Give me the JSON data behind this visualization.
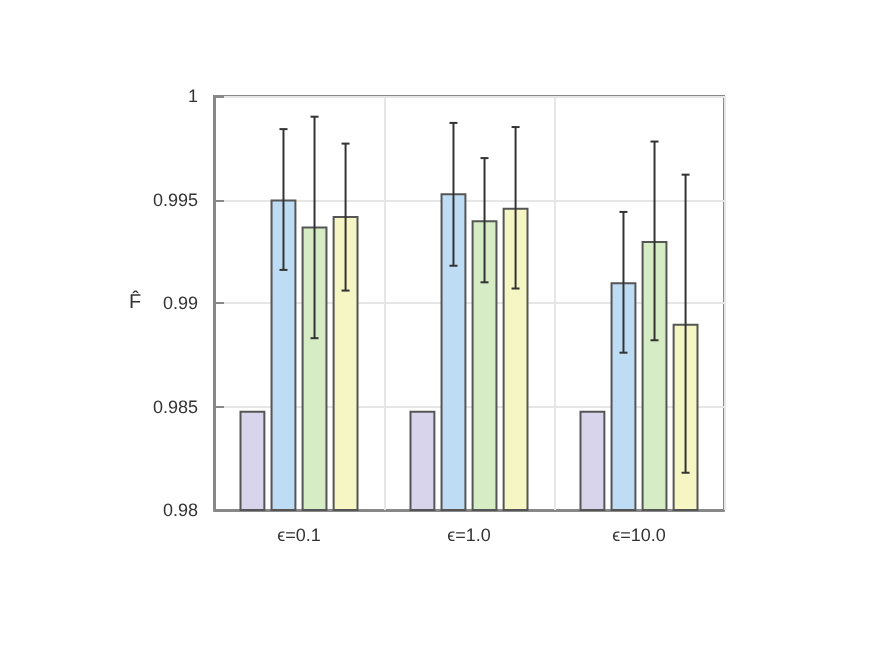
{
  "chart_data": {
    "type": "bar",
    "ylabel": "F̂",
    "categories": [
      "ϵ=0.1",
      "ϵ=1.0",
      "ϵ=10.0"
    ],
    "series": [
      {
        "color": "#d8d4ec",
        "values": [
          0.9848,
          0.9848,
          0.9848
        ]
      },
      {
        "color": "#bfdcf5",
        "values": [
          0.995,
          0.9953,
          0.991
        ],
        "errors": [
          [
            0.9916,
            0.9984
          ],
          [
            0.9918,
            0.9987
          ],
          [
            0.9876,
            0.9944
          ]
        ]
      },
      {
        "color": "#d5ecc4",
        "values": [
          0.9937,
          0.994,
          0.993
        ],
        "errors": [
          [
            0.9883,
            0.999
          ],
          [
            0.991,
            0.997
          ],
          [
            0.9882,
            0.9978
          ]
        ]
      },
      {
        "color": "#f6f6c4",
        "values": [
          0.9942,
          0.9946,
          0.989
        ],
        "errors": [
          [
            0.9906,
            0.9977
          ],
          [
            0.9907,
            0.9985
          ],
          [
            0.9818,
            0.9962
          ]
        ]
      }
    ],
    "ylim": [
      0.98,
      1
    ],
    "yticks": [
      0.98,
      0.985,
      0.99,
      0.995,
      1
    ],
    "grid": true
  }
}
